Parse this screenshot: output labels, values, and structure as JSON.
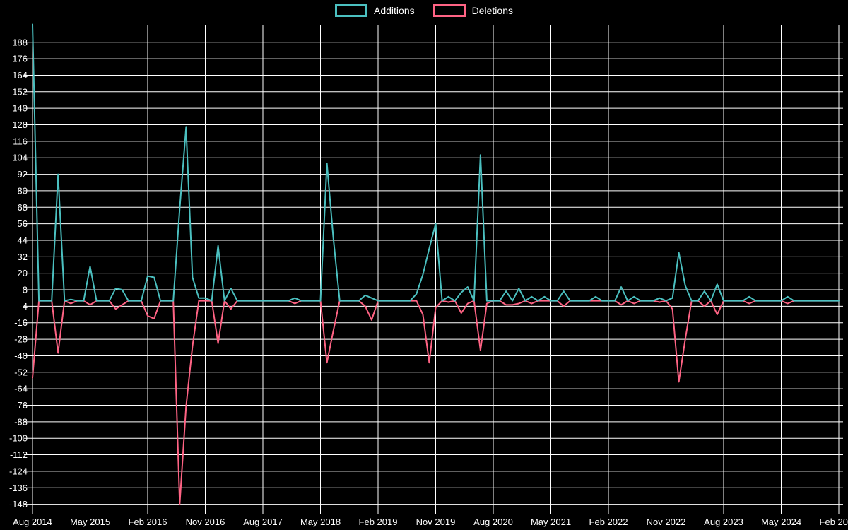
{
  "legend": {
    "items": [
      {
        "label": "Additions",
        "color": "#4bc0c0"
      },
      {
        "label": "Deletions",
        "color": "#ff6384"
      }
    ]
  },
  "chart_data": {
    "type": "line",
    "title": "",
    "xlabel": "",
    "ylabel": "",
    "x_start_month": "Aug 2014",
    "x_interval": "monthly",
    "x_tick_every": 9,
    "x_tick_labels": [
      "Aug 2014",
      "May 2015",
      "Feb 2016",
      "Nov 2016",
      "Aug 2017",
      "May 2018",
      "Feb 2019",
      "Nov 2019",
      "Aug 2020",
      "May 2021",
      "Feb 2022",
      "Nov 2022",
      "Aug 2023",
      "May 2024",
      "Feb 2025"
    ],
    "y_ticks": [
      188,
      176,
      164,
      152,
      140,
      128,
      116,
      104,
      92,
      80,
      68,
      56,
      44,
      32,
      20,
      8,
      -4,
      -16,
      -28,
      -40,
      -52,
      -64,
      -76,
      -88,
      -100,
      -112,
      -124,
      -136,
      -148
    ],
    "ylim": [
      -155,
      202
    ],
    "grid": true,
    "legend_position": "top-center",
    "background": "#000000",
    "grid_color": "#ffffff",
    "series": [
      {
        "name": "Additions",
        "color": "#4bc0c0",
        "values": [
          201,
          0,
          0,
          0,
          92,
          0,
          1,
          0,
          0,
          25,
          0,
          0,
          0,
          9,
          8,
          0,
          0,
          0,
          18,
          17,
          0,
          0,
          0,
          67,
          126,
          17,
          2,
          2,
          0,
          40,
          0,
          9,
          0,
          0,
          0,
          0,
          0,
          0,
          0,
          0,
          0,
          2,
          0,
          0,
          0,
          0,
          100,
          46,
          0,
          0,
          0,
          0,
          4,
          2,
          0,
          0,
          0,
          0,
          0,
          0,
          5,
          19,
          38,
          56,
          0,
          3,
          0,
          6,
          10,
          0,
          106,
          0,
          0,
          0,
          7,
          0,
          9,
          0,
          3,
          0,
          3,
          0,
          0,
          7,
          0,
          0,
          0,
          0,
          3,
          0,
          0,
          0,
          10,
          0,
          3,
          0,
          0,
          0,
          2,
          0,
          2,
          35,
          11,
          0,
          0,
          7,
          0,
          12,
          0,
          0,
          0,
          0,
          3,
          0,
          0,
          0,
          0,
          0,
          3,
          0,
          0,
          0,
          0,
          0,
          0,
          0,
          0
        ]
      },
      {
        "name": "Deletions",
        "color": "#ff6384",
        "values": [
          -56,
          0,
          0,
          0,
          -38,
          0,
          -2,
          0,
          0,
          -3,
          0,
          0,
          0,
          -6,
          -3,
          0,
          0,
          0,
          -11,
          -13,
          0,
          0,
          0,
          -148,
          -77,
          -33,
          0,
          0,
          0,
          -31,
          0,
          -6,
          0,
          0,
          0,
          0,
          0,
          0,
          0,
          0,
          0,
          -2,
          0,
          0,
          0,
          0,
          -45,
          -22,
          0,
          0,
          0,
          0,
          -4,
          -14,
          0,
          0,
          0,
          0,
          0,
          0,
          0,
          -10,
          -45,
          -5,
          0,
          -1,
          0,
          -9,
          -2,
          0,
          -36,
          -2,
          0,
          0,
          -3,
          -3,
          -2,
          0,
          -2,
          0,
          0,
          0,
          0,
          -4,
          0,
          0,
          0,
          0,
          0,
          0,
          0,
          0,
          -3,
          0,
          -2,
          0,
          0,
          0,
          -1,
          0,
          -6,
          -59,
          -28,
          0,
          0,
          -4,
          0,
          -10,
          0,
          0,
          0,
          0,
          -2,
          0,
          0,
          0,
          0,
          0,
          -2,
          0,
          0,
          0,
          0,
          0,
          0,
          0,
          0
        ]
      }
    ]
  }
}
